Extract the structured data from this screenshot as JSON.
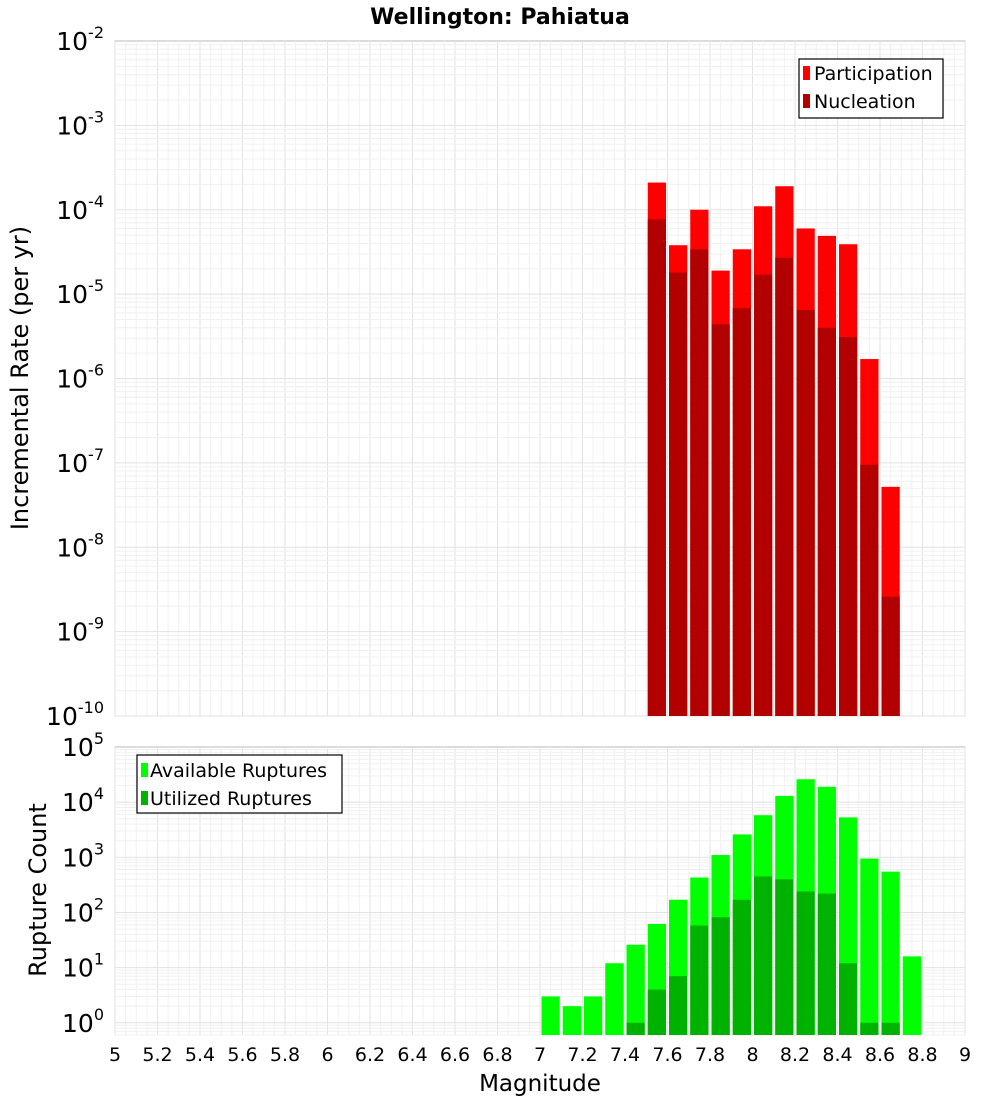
{
  "chart_data": [
    {
      "type": "bar",
      "panel": "top",
      "title": "Wellington: Pahiatua",
      "ylabel": "Incremental Rate (per yr)",
      "yscale": "log",
      "ylim": [
        1e-10,
        0.01
      ],
      "y_tick_labels": [
        {
          "base": "10",
          "exp": "-10"
        },
        {
          "base": "10",
          "exp": "-9"
        },
        {
          "base": "10",
          "exp": "-8"
        },
        {
          "base": "10",
          "exp": "-7"
        },
        {
          "base": "10",
          "exp": "-6"
        },
        {
          "base": "10",
          "exp": "-5"
        },
        {
          "base": "10",
          "exp": "-4"
        },
        {
          "base": "10",
          "exp": "-3"
        },
        {
          "base": "10",
          "exp": "-2"
        }
      ],
      "legend": {
        "position": "top-right",
        "entries": [
          "Participation",
          "Nucleation"
        ]
      },
      "grid": true,
      "bin_width": 0.1,
      "x": [
        7.55,
        7.65,
        7.75,
        7.85,
        7.95,
        8.05,
        8.15,
        8.25,
        8.35,
        8.45,
        8.55,
        8.65
      ],
      "series": [
        {
          "name": "Participation",
          "color": "#ff0000",
          "values": [
            0.00021,
            3.8e-05,
            0.0001,
            1.9e-05,
            3.4e-05,
            0.00011,
            0.00019,
            6e-05,
            4.9e-05,
            3.9e-05,
            1.7e-06,
            5.2e-08
          ]
        },
        {
          "name": "Nucleation",
          "color": "#b20000",
          "values": [
            7.7e-05,
            1.8e-05,
            3.4e-05,
            4.4e-06,
            6.8e-06,
            1.7e-05,
            2.7e-05,
            6.5e-06,
            4e-06,
            3.1e-06,
            9.5e-08,
            2.6e-09
          ]
        }
      ]
    },
    {
      "type": "bar",
      "panel": "bottom",
      "xlabel": "Magnitude",
      "ylabel": "Rupture Count",
      "yscale": "log",
      "ylim": [
        0.6,
        100000
      ],
      "xlim": [
        5,
        9
      ],
      "x_tick_labels": [
        "5",
        "5.2",
        "5.4",
        "5.6",
        "5.8",
        "6",
        "6.2",
        "6.4",
        "6.6",
        "6.8",
        "7",
        "7.2",
        "7.4",
        "7.6",
        "7.8",
        "8",
        "8.2",
        "8.4",
        "8.6",
        "8.8",
        "9"
      ],
      "y_tick_labels": [
        {
          "base": "10",
          "exp": "0"
        },
        {
          "base": "10",
          "exp": "1"
        },
        {
          "base": "10",
          "exp": "2"
        },
        {
          "base": "10",
          "exp": "3"
        },
        {
          "base": "10",
          "exp": "4"
        },
        {
          "base": "10",
          "exp": "5"
        }
      ],
      "legend": {
        "position": "top-left",
        "entries": [
          "Available Ruptures",
          "Utilized Ruptures"
        ]
      },
      "grid": true,
      "bin_width": 0.1,
      "x": [
        7.05,
        7.15,
        7.25,
        7.35,
        7.45,
        7.55,
        7.65,
        7.75,
        7.85,
        7.95,
        8.05,
        8.15,
        8.25,
        8.35,
        8.45,
        8.55,
        8.65,
        8.75
      ],
      "series": [
        {
          "name": "Available Ruptures",
          "color": "#00ff00",
          "values": [
            3,
            2,
            3,
            12,
            26,
            62,
            170,
            430,
            1100,
            2600,
            5800,
            13000,
            26000,
            19000,
            5300,
            950,
            550,
            16
          ]
        },
        {
          "name": "Utilized Ruptures",
          "color": "#00b200",
          "values": [
            0,
            0,
            0,
            0,
            1,
            4,
            7,
            58,
            82,
            170,
            450,
            400,
            240,
            220,
            12,
            1,
            1,
            0
          ]
        }
      ]
    }
  ]
}
